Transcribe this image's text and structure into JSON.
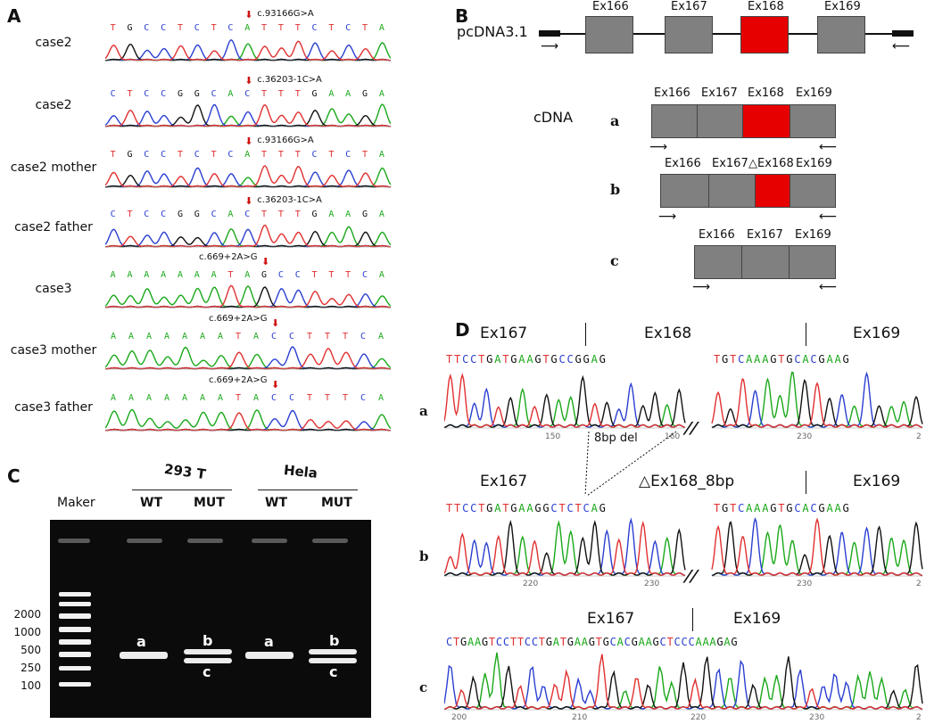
{
  "panels": {
    "A": "A",
    "B": "B",
    "C": "C",
    "D": "D"
  },
  "panelA": {
    "rows": [
      {
        "label": "case2",
        "seq": [
          "T",
          "G",
          "C",
          "C",
          "T",
          "C",
          "T",
          "C",
          "A",
          "T",
          "T",
          "T",
          "C",
          "T",
          "C",
          "T",
          "A"
        ],
        "mutation": "c.93166G>A"
      },
      {
        "label": "case2",
        "seq": [
          "C",
          "T",
          "C",
          "C",
          "G",
          "G",
          "C",
          "A",
          "C",
          "T",
          "T",
          "T",
          "G",
          "A",
          "A",
          "G",
          "A"
        ],
        "mutation": "c.36203-1C>A"
      },
      {
        "label": "case2 mother",
        "seq": [
          "T",
          "G",
          "C",
          "C",
          "T",
          "C",
          "T",
          "C",
          "A",
          "T",
          "T",
          "T",
          "C",
          "T",
          "C",
          "T",
          "A"
        ],
        "mutation": "c.93166G>A"
      },
      {
        "label": "case2 father",
        "seq": [
          "C",
          "T",
          "C",
          "C",
          "G",
          "G",
          "C",
          "A",
          "C",
          "T",
          "T",
          "T",
          "G",
          "A",
          "A",
          "G",
          "A"
        ],
        "mutation": "c.36203-1C>A"
      },
      {
        "label": "case3",
        "seq": [
          "A",
          "A",
          "A",
          "A",
          "A",
          "A",
          "A",
          "T",
          "A",
          "G",
          "C",
          "C",
          "T",
          "T",
          "T",
          "C",
          "A"
        ],
        "mutation": "c.669+2A>G"
      },
      {
        "label": "case3 mother",
        "seq": [
          "A",
          "A",
          "A",
          "A",
          "A",
          "A",
          "A",
          "T",
          "A",
          "C",
          "C",
          "T",
          "T",
          "T",
          "C",
          "A"
        ],
        "mutation": "c.669+2A>G"
      },
      {
        "label": "case3 father",
        "seq": [
          "A",
          "A",
          "A",
          "A",
          "A",
          "A",
          "A",
          "T",
          "A",
          "C",
          "C",
          "T",
          "T",
          "T",
          "C",
          "A"
        ],
        "mutation": "c.669+2A>G"
      }
    ]
  },
  "panelB": {
    "vector": "pcDNA3.1",
    "genomic_exons": [
      "Ex166",
      "Ex167",
      "Ex168",
      "Ex169"
    ],
    "cdna_label": "cDNA",
    "row_a": {
      "letter": "a",
      "exons": [
        "Ex166",
        "Ex167",
        "Ex168",
        "Ex169"
      ]
    },
    "row_b": {
      "letter": "b",
      "exons": [
        "Ex166",
        "Ex167",
        "△Ex168",
        "Ex169"
      ]
    },
    "row_c": {
      "letter": "c",
      "exons": [
        "Ex166",
        "Ex167",
        "Ex169"
      ]
    }
  },
  "panelC": {
    "groups": [
      "293 T",
      "Hela"
    ],
    "lanes": [
      "Maker",
      "WT",
      "MUT",
      "WT",
      "MUT"
    ],
    "sizes": [
      "2000",
      "1000",
      "500",
      "250",
      "100"
    ],
    "band_labels": {
      "a1": "a",
      "b1": "b",
      "c1": "c",
      "a2": "a",
      "b2": "b",
      "c2": "c"
    }
  },
  "panelD": {
    "row_a": {
      "letter": "a",
      "left_ex": "Ex167",
      "mid_ex": "Ex168",
      "right_ex": "Ex169",
      "seq_left": "TTCCTGATGAAGTGCCGGAG",
      "seq_right": "TGTCAAAGTGCACGAAG",
      "ticks": [
        "150",
        "160",
        "230",
        "2"
      ]
    },
    "del_label": "8bp del",
    "row_b": {
      "letter": "b",
      "left_ex": "Ex167",
      "mid_ex": "△Ex168_8bp",
      "right_ex": "Ex169",
      "seq_left": "TTCCTGATGAAGGCTCTCAG",
      "seq_right": "TGTCAAAGTGCACGAAG",
      "ticks": [
        "220",
        "230",
        "230",
        "2"
      ]
    },
    "row_c": {
      "letter": "c",
      "left_ex": "Ex167",
      "right_ex": "Ex169",
      "seq": "CTGAAGTCCTTCCTGATGAAGTGCACGAAGCTCCCAAAGAG",
      "ticks": [
        "200",
        "210",
        "220",
        "230",
        "2"
      ]
    }
  },
  "colors": {
    "A": "#1aa81a",
    "C": "#2a3fd0",
    "G": "#111111",
    "T": "#e03030",
    "highlight": "#e60000",
    "exon": "#808080"
  }
}
